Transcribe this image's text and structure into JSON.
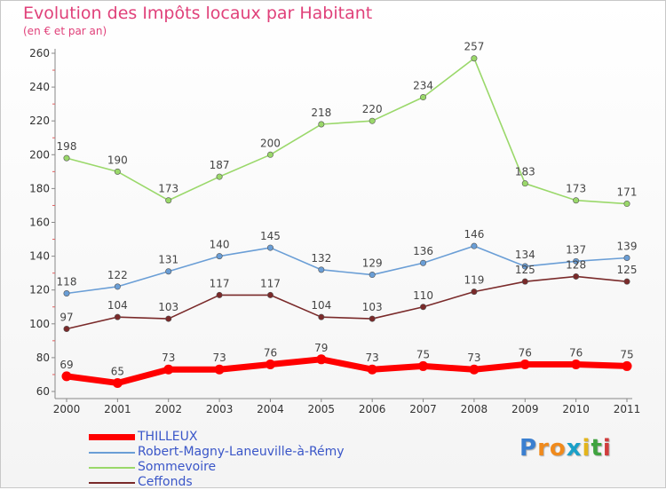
{
  "header": {
    "title": "Evolution des Impôts locaux par Habitant",
    "subtitle": "(en € et par an)"
  },
  "logo": {
    "letters": [
      "P",
      "r",
      "o",
      "x",
      "i",
      "t",
      "i"
    ],
    "colors": [
      "#3a7fd0",
      "#f08a1c",
      "#f08a1c",
      "#1aa0c8",
      "#e3b51b",
      "#3fa33f",
      "#d03c3c"
    ]
  },
  "chart_data": {
    "type": "line",
    "x": [
      "2000",
      "2001",
      "2002",
      "2003",
      "2004",
      "2005",
      "2006",
      "2007",
      "2008",
      "2009",
      "2010",
      "2011"
    ],
    "ylim": [
      60,
      260
    ],
    "yticks": [
      "60",
      "80",
      "100",
      "120",
      "140",
      "160",
      "180",
      "200",
      "220",
      "240",
      "260"
    ],
    "grid": false,
    "legend_position": "bottom-left",
    "series": [
      {
        "name": "THILLEUX",
        "color": "#ff0000",
        "values": [
          69,
          65,
          73,
          73,
          76,
          79,
          73,
          75,
          73,
          76,
          76,
          75
        ]
      },
      {
        "name": "Robert-Magny-Laneuville-à-Rémy",
        "color": "#6a9ed6",
        "values": [
          118,
          122,
          131,
          140,
          145,
          132,
          129,
          136,
          146,
          134,
          137,
          139
        ]
      },
      {
        "name": "Sommevoire",
        "color": "#9ad86a",
        "values": [
          198,
          190,
          173,
          187,
          200,
          218,
          220,
          234,
          257,
          183,
          173,
          171
        ]
      },
      {
        "name": "Ceffonds",
        "color": "#7a2a2a",
        "values": [
          97,
          104,
          103,
          117,
          117,
          104,
          103,
          110,
          119,
          125,
          128,
          125
        ]
      }
    ]
  }
}
